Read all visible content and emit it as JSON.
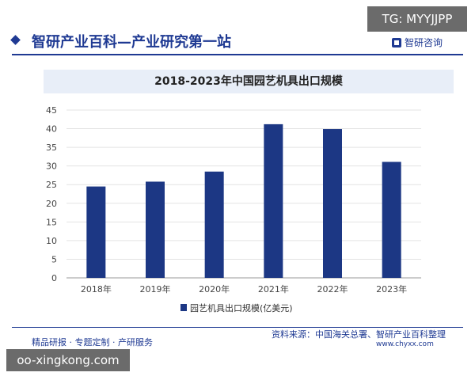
{
  "overlay": {
    "tg_label": "TG: MYYJJPP",
    "watermark_label": "oo-xingkong.com"
  },
  "header": {
    "title": "智研产业百科—产业研究第一站",
    "brand_name": "智研咨询"
  },
  "footer": {
    "left_text": "精品研报 · 专题定制 · 产研服务",
    "source": "资料来源：中国海关总署、智研产业百科整理",
    "url": "www.chyxx.com"
  },
  "colors": {
    "accent": "#1f3a93",
    "bar": "#1c3784"
  },
  "chart_data": {
    "type": "bar",
    "title": "2018-2023年中国园艺机具出口规模",
    "categories": [
      "2018年",
      "2019年",
      "2020年",
      "2021年",
      "2022年",
      "2023年"
    ],
    "series": [
      {
        "name": "园艺机具出口规模(亿美元)",
        "values": [
          24.5,
          25.8,
          28.5,
          41.2,
          39.9,
          31.1
        ]
      }
    ],
    "ylim": [
      0,
      45
    ],
    "yticks": [
      "0",
      "5",
      "10",
      "15",
      "20",
      "25",
      "30",
      "35",
      "40",
      "45"
    ],
    "grid": true,
    "legend_position": "bottom"
  }
}
